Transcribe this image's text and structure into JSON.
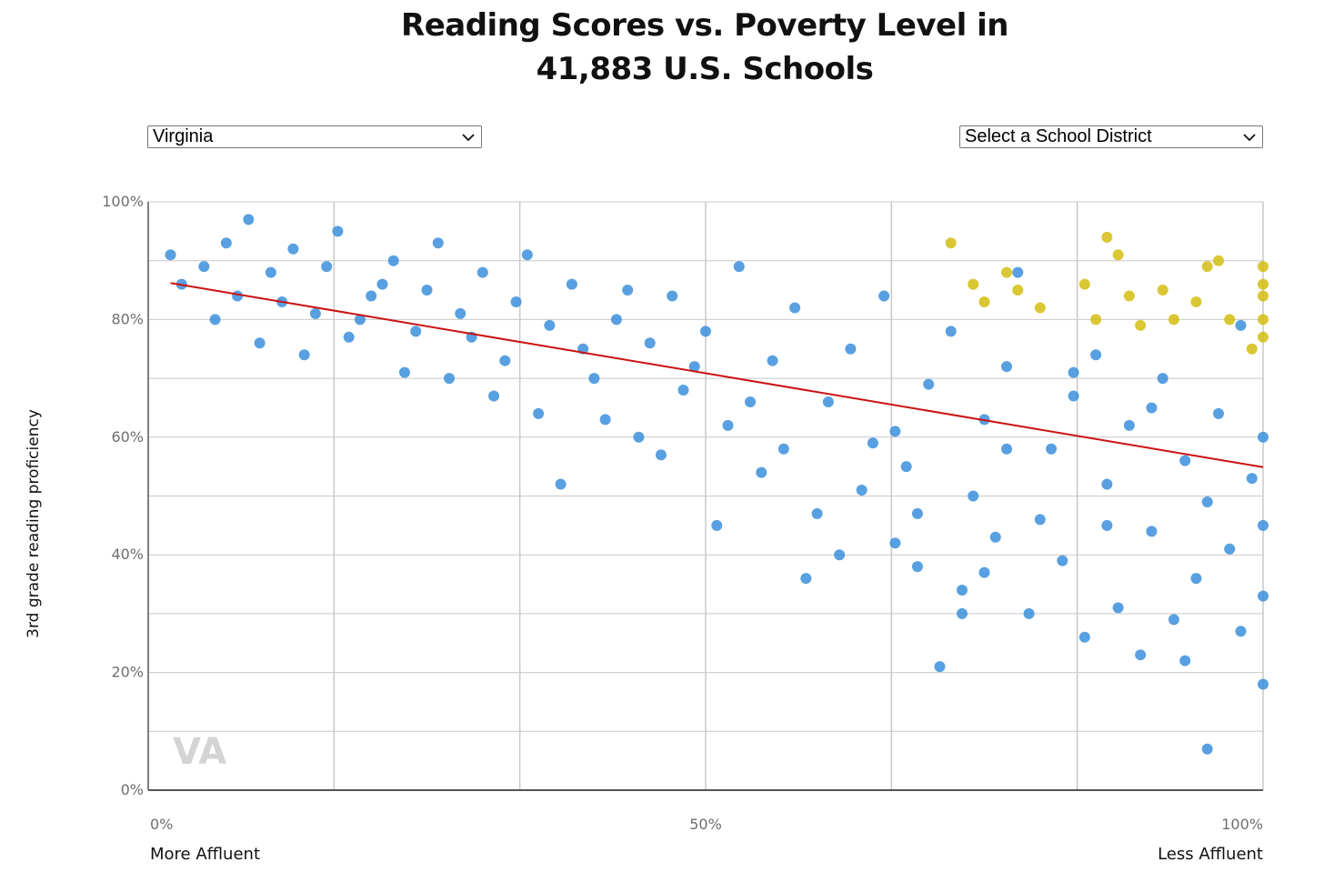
{
  "title_line1": "Reading Scores vs. Poverty Level in",
  "title_line2": "41,883 U.S. Schools",
  "controls": {
    "state_select_value": "Virginia",
    "district_select_value": "Select a School District"
  },
  "colors": {
    "school_dot": "#3b8fdc",
    "highlight_dot": "#d4bd11",
    "trend_line": "#cc1111",
    "gridline": "#c8c8c8",
    "watermark": "#d4d4d4"
  },
  "chart_data": {
    "type": "scatter",
    "title": "Reading Scores vs. Poverty Level in 41,883 U.S. Schools",
    "ylabel": "3rd grade reading proficiency",
    "xlim": [
      0,
      100
    ],
    "ylim": [
      0,
      100
    ],
    "x_tick_labels": [
      "0%",
      "50%",
      "100%"
    ],
    "y_tick_labels": [
      "0%",
      "20%",
      "40%",
      "60%",
      "80%",
      "100%"
    ],
    "x_end_labels": {
      "left": "More Affluent",
      "right": "Less Affluent"
    },
    "watermark": "VA",
    "grid": true,
    "trendline": {
      "x": [
        2,
        100
      ],
      "y": [
        86.2,
        54.9
      ]
    },
    "series": [
      {
        "color": "#3b8fdc",
        "points": [
          [
            2,
            91
          ],
          [
            3,
            86
          ],
          [
            5,
            89
          ],
          [
            6,
            80
          ],
          [
            8,
            84
          ],
          [
            10,
            76
          ],
          [
            11,
            88
          ],
          [
            12,
            83
          ],
          [
            13,
            92
          ],
          [
            15,
            81
          ],
          [
            16,
            89
          ],
          [
            18,
            77
          ],
          [
            20,
            84
          ],
          [
            22,
            90
          ],
          [
            24,
            78
          ],
          [
            25,
            85
          ],
          [
            27,
            70
          ],
          [
            28,
            81
          ],
          [
            30,
            88
          ],
          [
            32,
            73
          ],
          [
            33,
            83
          ],
          [
            35,
            64
          ],
          [
            36,
            79
          ],
          [
            38,
            86
          ],
          [
            40,
            70
          ],
          [
            42,
            80
          ],
          [
            44,
            60
          ],
          [
            45,
            76
          ],
          [
            47,
            84
          ],
          [
            48,
            68
          ],
          [
            50,
            78
          ],
          [
            52,
            62
          ],
          [
            53,
            89
          ],
          [
            55,
            54
          ],
          [
            56,
            73
          ],
          [
            58,
            82
          ],
          [
            60,
            47
          ],
          [
            61,
            66
          ],
          [
            63,
            75
          ],
          [
            65,
            59
          ],
          [
            66,
            84
          ],
          [
            68,
            55
          ],
          [
            70,
            69
          ],
          [
            72,
            78
          ],
          [
            74,
            50
          ],
          [
            75,
            63
          ],
          [
            77,
            72
          ],
          [
            78,
            88
          ],
          [
            80,
            46
          ],
          [
            81,
            58
          ],
          [
            83,
            67
          ],
          [
            85,
            74
          ],
          [
            86,
            52
          ],
          [
            88,
            62
          ],
          [
            90,
            44
          ],
          [
            91,
            70
          ],
          [
            93,
            56
          ],
          [
            95,
            49
          ],
          [
            96,
            64
          ],
          [
            98,
            79
          ],
          [
            99,
            53
          ],
          [
            100,
            60
          ],
          [
            100,
            45
          ],
          [
            100,
            33
          ],
          [
            97,
            41
          ],
          [
            94,
            36
          ],
          [
            92,
            29
          ],
          [
            89,
            23
          ],
          [
            87,
            31
          ],
          [
            84,
            26
          ],
          [
            82,
            39
          ],
          [
            79,
            30
          ],
          [
            76,
            43
          ],
          [
            73,
            34
          ],
          [
            71,
            21
          ],
          [
            69,
            38
          ],
          [
            67,
            42
          ],
          [
            64,
            51
          ],
          [
            62,
            40
          ],
          [
            59,
            36
          ],
          [
            57,
            58
          ],
          [
            54,
            66
          ],
          [
            51,
            45
          ],
          [
            49,
            72
          ],
          [
            46,
            57
          ],
          [
            43,
            85
          ],
          [
            41,
            63
          ],
          [
            39,
            75
          ],
          [
            37,
            52
          ],
          [
            34,
            91
          ],
          [
            31,
            67
          ],
          [
            29,
            77
          ],
          [
            26,
            93
          ],
          [
            23,
            71
          ],
          [
            21,
            86
          ],
          [
            19,
            80
          ],
          [
            17,
            95
          ],
          [
            14,
            74
          ],
          [
            9,
            97
          ],
          [
            7,
            93
          ],
          [
            95,
            7
          ],
          [
            100,
            18
          ],
          [
            98,
            27
          ],
          [
            93,
            22
          ],
          [
            75,
            37
          ],
          [
            73,
            30
          ],
          [
            67,
            61
          ],
          [
            69,
            47
          ],
          [
            83,
            71
          ],
          [
            86,
            45
          ],
          [
            90,
            65
          ],
          [
            77,
            58
          ]
        ]
      },
      {
        "color": "#d4bd11",
        "points": [
          [
            72,
            93
          ],
          [
            74,
            86
          ],
          [
            75,
            83
          ],
          [
            77,
            88
          ],
          [
            78,
            85
          ],
          [
            80,
            82
          ],
          [
            84,
            86
          ],
          [
            85,
            80
          ],
          [
            86,
            94
          ],
          [
            87,
            91
          ],
          [
            88,
            84
          ],
          [
            89,
            79
          ],
          [
            91,
            85
          ],
          [
            92,
            80
          ],
          [
            94,
            83
          ],
          [
            95,
            89
          ],
          [
            96,
            90
          ],
          [
            97,
            80
          ],
          [
            100,
            89
          ],
          [
            100,
            86
          ],
          [
            100,
            84
          ],
          [
            100,
            80
          ],
          [
            100,
            77
          ],
          [
            99,
            75
          ]
        ]
      }
    ]
  }
}
